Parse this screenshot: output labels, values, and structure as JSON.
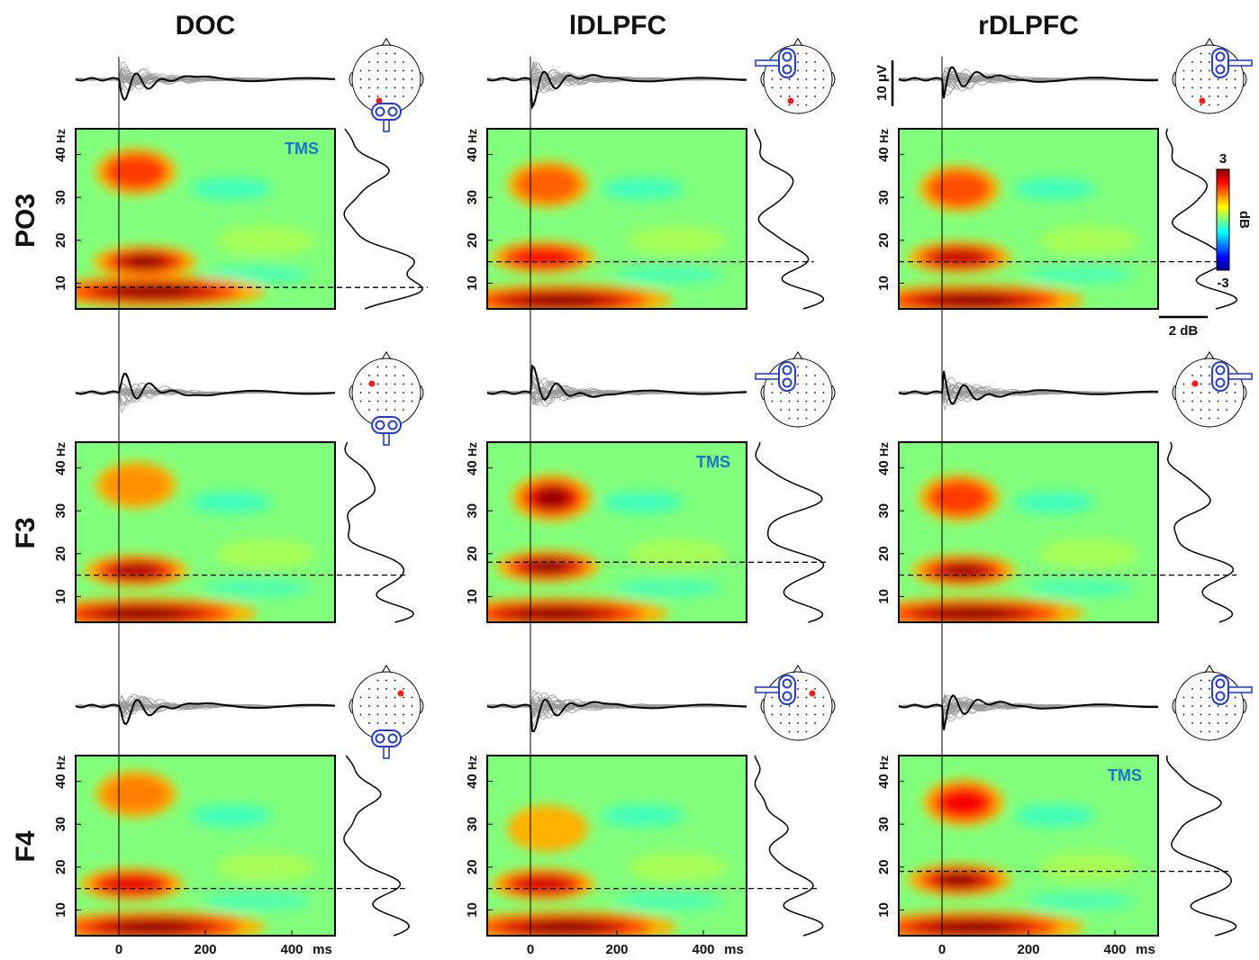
{
  "figure": {
    "col_titles": [
      "DOC",
      "lDLPFC",
      "rDLPFC"
    ],
    "row_titles": [
      "PO3",
      "F3",
      "F4"
    ],
    "freq_unit": "Hz",
    "time_unit": "ms",
    "tms_label": "TMS",
    "voltage_scale": "10 μV",
    "power_scale": "2 dB",
    "colorbar": {
      "label": "dB",
      "max_label": "3",
      "min_label": "-3"
    }
  },
  "chart_data": {
    "type": "heatmap",
    "title": "",
    "xlabel": "ms",
    "ylabel": "Hz",
    "x_range": [
      -100,
      500
    ],
    "y_range": [
      4,
      46
    ],
    "x_ticks": [
      0,
      200,
      400
    ],
    "y_ticks": [
      10,
      20,
      30,
      40
    ],
    "color_range": [
      -3,
      3
    ],
    "colormap": "jet",
    "panels": [
      {
        "row": "PO3",
        "col": "DOC",
        "tms": true,
        "peak_hz": 9,
        "blobs": [
          {
            "t": 40,
            "f": 36,
            "amp": 1.9
          },
          {
            "t": 60,
            "f": 15,
            "amp": 3.0
          },
          {
            "t": 80,
            "f": 8,
            "amp": 3.0
          }
        ]
      },
      {
        "row": "PO3",
        "col": "lDLPFC",
        "tms": false,
        "peak_hz": 15,
        "blobs": [
          {
            "t": 40,
            "f": 33,
            "amp": 1.7
          },
          {
            "t": 30,
            "f": 16,
            "amp": 2.3
          },
          {
            "t": 70,
            "f": 6,
            "amp": 3.0
          }
        ]
      },
      {
        "row": "PO3",
        "col": "rDLPFC",
        "tms": false,
        "peak_hz": 15,
        "blobs": [
          {
            "t": 40,
            "f": 32,
            "amp": 1.8
          },
          {
            "t": 40,
            "f": 16,
            "amp": 2.6
          },
          {
            "t": 70,
            "f": 6,
            "amp": 3.0
          }
        ]
      },
      {
        "row": "F3",
        "col": "DOC",
        "tms": false,
        "peak_hz": 15,
        "blobs": [
          {
            "t": 40,
            "f": 36,
            "amp": 1.4
          },
          {
            "t": 40,
            "f": 16,
            "amp": 2.8
          },
          {
            "t": 60,
            "f": 6,
            "amp": 3.0
          }
        ]
      },
      {
        "row": "F3",
        "col": "lDLPFC",
        "tms": true,
        "peak_hz": 18,
        "blobs": [
          {
            "t": 50,
            "f": 33,
            "amp": 2.9
          },
          {
            "t": 40,
            "f": 17,
            "amp": 3.0
          },
          {
            "t": 60,
            "f": 6,
            "amp": 3.0
          }
        ]
      },
      {
        "row": "F3",
        "col": "rDLPFC",
        "tms": false,
        "peak_hz": 15,
        "blobs": [
          {
            "t": 40,
            "f": 33,
            "amp": 1.9
          },
          {
            "t": 50,
            "f": 16,
            "amp": 2.9
          },
          {
            "t": 70,
            "f": 6,
            "amp": 3.0
          }
        ]
      },
      {
        "row": "F4",
        "col": "DOC",
        "tms": false,
        "peak_hz": 15,
        "blobs": [
          {
            "t": 40,
            "f": 37,
            "amp": 1.5
          },
          {
            "t": 30,
            "f": 16,
            "amp": 2.4
          },
          {
            "t": 80,
            "f": 6,
            "amp": 3.0
          }
        ]
      },
      {
        "row": "F4",
        "col": "lDLPFC",
        "tms": false,
        "peak_hz": 15,
        "blobs": [
          {
            "t": 40,
            "f": 29,
            "amp": 1.3
          },
          {
            "t": 30,
            "f": 16,
            "amp": 2.5
          },
          {
            "t": 80,
            "f": 6,
            "amp": 3.0
          }
        ]
      },
      {
        "row": "F4",
        "col": "rDLPFC",
        "tms": true,
        "peak_hz": 19,
        "blobs": [
          {
            "t": 50,
            "f": 35,
            "amp": 2.3
          },
          {
            "t": 40,
            "f": 17,
            "amp": 3.0
          },
          {
            "t": 70,
            "f": 6,
            "amp": 3.0
          }
        ]
      }
    ]
  }
}
